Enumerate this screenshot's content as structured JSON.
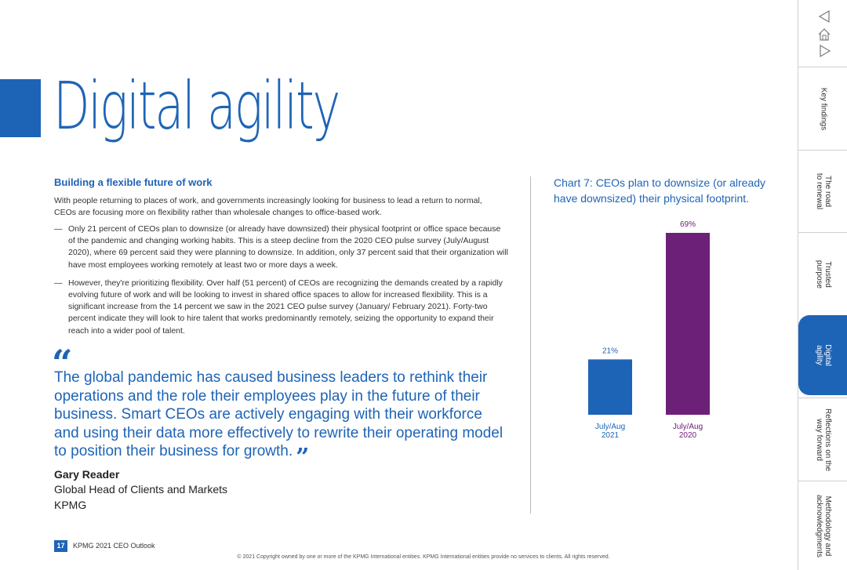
{
  "page": {
    "title": "Digital agility",
    "section_heading": "Building a flexible future of work",
    "intro": "With people returning to places of work, and governments increasingly looking for business to lead a return to normal, CEOs are focusing more on flexibility rather than wholesale changes to office-based work.",
    "bullets": [
      "Only 21 percent of CEOs plan to downsize (or already have downsized) their physical footprint or office space because of the pandemic and changing working habits. This is a steep decline from the 2020 CEO pulse survey (July/August 2020), where 69 percent said they were planning to downsize. In addition, only 37 percent said that their organization will have most employees working remotely at least two or more days a week.",
      "However, they're prioritizing flexibility. Over half (51 percent) of CEOs are recognizing the demands created by a rapidly evolving future of work and will be looking to invest in shared office spaces to allow for increased flexibility. This is a significant increase from the 14 percent we saw in the 2021 CEO pulse survey (January/ February 2021). Forty-two percent indicate they will look to hire talent that works predominantly remotely, seizing the opportunity to expand their reach into a wider pool of talent."
    ],
    "bullet_dash": "—",
    "quote_open": "“",
    "quote": "The global pandemic has caused business leaders to rethink their operations and the role their employees play in the future of their business. Smart CEOs are actively engaging with their workforce and using their data more effectively to rewrite their operating model to position their business for growth.",
    "quote_close": "”",
    "author_name": "Gary Reader",
    "author_role": "Global Head of Clients and Markets",
    "author_org": "KPMG"
  },
  "chart_data": {
    "type": "bar",
    "title": "Chart 7: CEOs plan to downsize (or already have downsized) their physical footprint.",
    "categories": [
      [
        "July/Aug",
        "2021"
      ],
      [
        "July/Aug",
        "2020"
      ]
    ],
    "values": [
      21,
      69
    ],
    "value_labels": [
      "21%",
      "69%"
    ],
    "colors": [
      "#1e64b6",
      "#6d2077"
    ],
    "ylim": [
      0,
      69
    ],
    "xlabel": "",
    "ylabel": ""
  },
  "footer": {
    "page_number": "17",
    "publication": "KPMG 2021 CEO Outlook",
    "copyright": "© 2021 Copyright owned by one or more of the KPMG International entities. KPMG International entities provide no services to clients. All rights reserved."
  },
  "nav": {
    "icons": [
      "back-triangle-icon",
      "home-icon",
      "forward-triangle-icon"
    ],
    "tabs": [
      {
        "label": "Key findings",
        "active": false
      },
      {
        "label": "The road\nto renewal",
        "active": false
      },
      {
        "label": "Trusted\npurpose",
        "active": false
      },
      {
        "label": "Digital\nagility",
        "active": true
      },
      {
        "label": "Reflections on the\nway forward",
        "active": false
      },
      {
        "label": "Methodology and\nacknowledgments",
        "active": false
      }
    ]
  },
  "colors": {
    "brand_blue": "#1e64b6",
    "purple": "#6d2077"
  }
}
